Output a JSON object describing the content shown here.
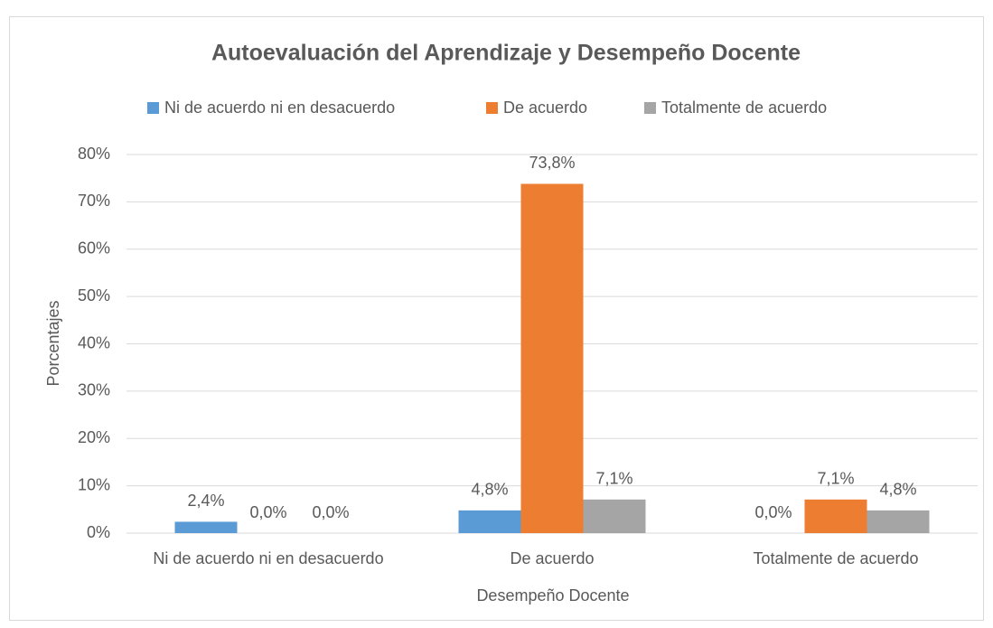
{
  "chart_data": {
    "type": "bar",
    "title": "Autoevaluación del Aprendizaje y Desempeño Docente",
    "x_label": "Desempeño Docente",
    "y_label": "Porcentajes",
    "categories": [
      "Ni de acuerdo ni en desacuerdo",
      "De acuerdo",
      "Totalmente de acuerdo"
    ],
    "series": [
      {
        "name": "Ni de acuerdo ni en desacuerdo",
        "color": "#5b9bd5",
        "values": [
          2.4,
          4.8,
          0.0
        ],
        "value_labels": [
          "2,4%",
          "4,8%",
          "0,0%"
        ]
      },
      {
        "name": "De acuerdo",
        "color": "#ed7d31",
        "values": [
          0.0,
          73.8,
          7.1
        ],
        "value_labels": [
          "0,0%",
          "73,8%",
          "7,1%"
        ]
      },
      {
        "name": "Totalmente de acuerdo",
        "color": "#a5a5a5",
        "values": [
          0.0,
          7.1,
          4.8
        ],
        "value_labels": [
          "0,0%",
          "7,1%",
          "4,8%"
        ]
      }
    ],
    "ylim": [
      0,
      80
    ],
    "yticks": [
      {
        "value": 0,
        "label": "0%"
      },
      {
        "value": 10,
        "label": "10%"
      },
      {
        "value": 20,
        "label": "20%"
      },
      {
        "value": 30,
        "label": "30%"
      },
      {
        "value": 40,
        "label": "40%"
      },
      {
        "value": 50,
        "label": "50%"
      },
      {
        "value": 60,
        "label": "60%"
      },
      {
        "value": 70,
        "label": "70%"
      },
      {
        "value": 80,
        "label": "80%"
      }
    ],
    "grid": true,
    "legend": "top"
  }
}
